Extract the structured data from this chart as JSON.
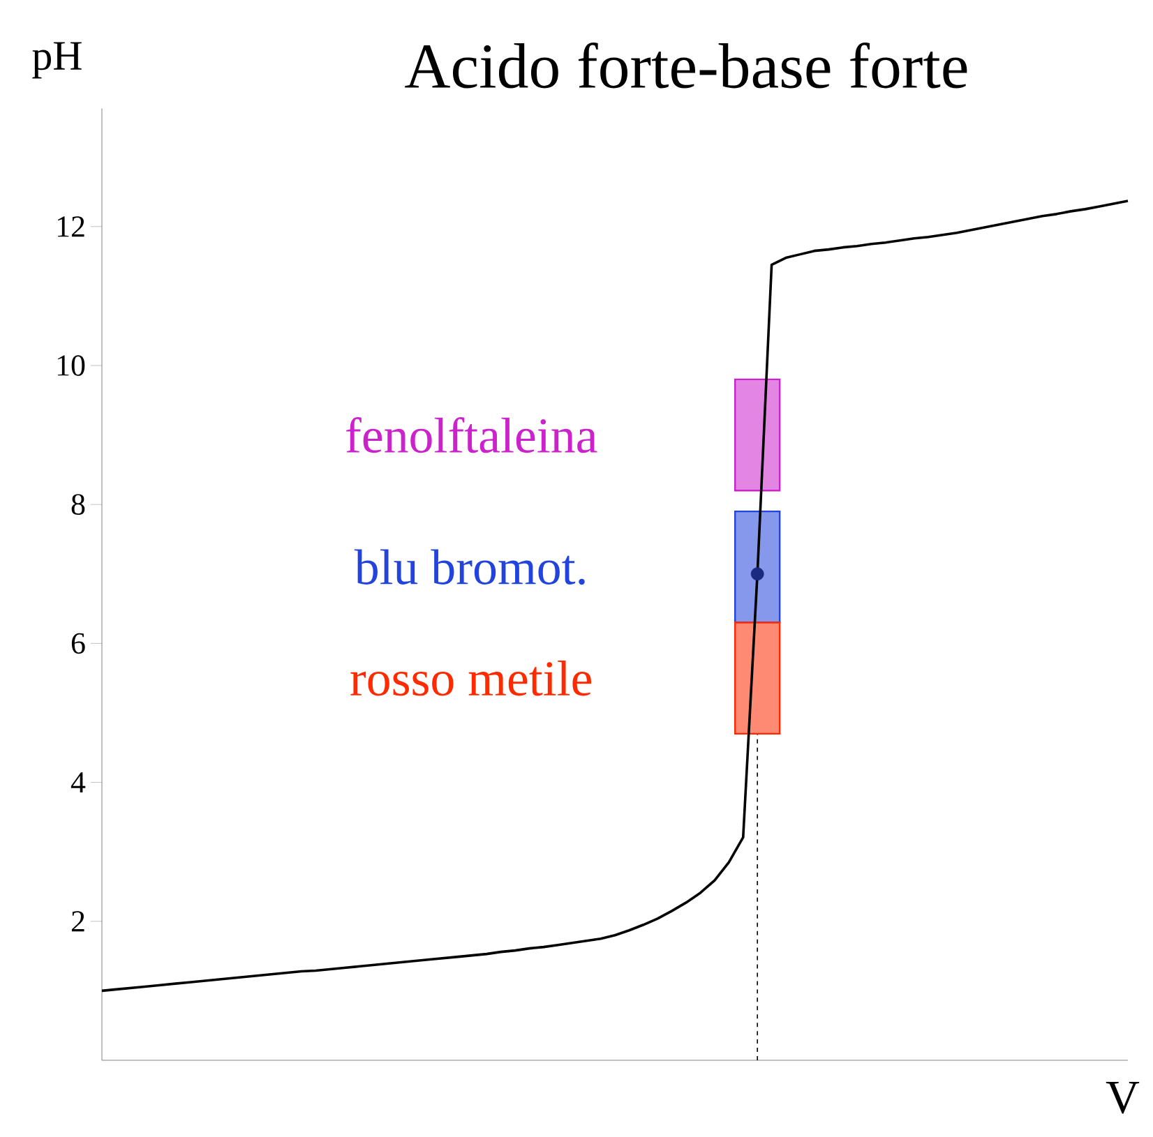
{
  "chart_data": {
    "type": "line",
    "title": "Acido forte-base forte",
    "xlabel": "V",
    "ylabel": "pH",
    "categories": [
      null,
      null,
      null,
      null,
      null,
      null,
      null,
      null,
      null,
      null,
      null,
      null,
      null,
      null,
      null,
      null,
      null,
      null,
      null,
      null,
      null,
      null,
      null,
      null,
      null,
      null,
      null,
      null,
      null,
      null,
      null,
      null,
      null,
      null,
      null,
      null,
      null,
      null,
      null,
      null,
      null,
      null,
      null,
      null,
      null,
      null,
      null,
      null,
      null,
      null,
      null,
      null,
      null,
      null,
      null,
      null,
      null,
      null,
      null,
      null,
      null,
      null,
      null,
      null,
      null,
      null,
      null,
      null,
      null,
      null,
      null,
      null,
      null
    ],
    "series": [
      {
        "color": "#000000",
        "values": [
          1.0,
          1.02,
          1.04,
          1.06,
          1.08,
          1.1,
          1.12,
          1.14,
          1.16,
          1.18,
          1.2,
          1.22,
          1.24,
          1.26,
          1.28,
          1.29,
          1.31,
          1.33,
          1.35,
          1.37,
          1.39,
          1.41,
          1.43,
          1.45,
          1.47,
          1.49,
          1.51,
          1.53,
          1.56,
          1.58,
          1.61,
          1.63,
          1.66,
          1.69,
          1.72,
          1.75,
          1.8,
          1.87,
          1.95,
          2.04,
          2.15,
          2.27,
          2.41,
          2.59,
          2.85,
          3.21,
          7.0,
          11.45,
          11.55,
          11.6,
          11.65,
          11.67,
          11.7,
          11.72,
          11.75,
          11.77,
          11.8,
          11.83,
          11.85,
          11.88,
          11.91,
          11.95,
          11.99,
          12.03,
          12.07,
          12.11,
          12.15,
          12.18,
          12.22,
          12.25,
          12.29,
          12.33,
          12.37
        ]
      },
      {
        "type": "scatter",
        "marker": "circle",
        "color": "#1a2a80",
        "values": [
          null,
          null,
          null,
          null,
          null,
          null,
          null,
          null,
          null,
          null,
          null,
          null,
          null,
          null,
          null,
          null,
          null,
          null,
          null,
          null,
          null,
          null,
          null,
          null,
          null,
          null,
          null,
          null,
          null,
          null,
          null,
          null,
          null,
          null,
          null,
          null,
          null,
          null,
          null,
          null,
          null,
          null,
          null,
          null,
          null,
          null,
          7.0,
          null,
          null,
          null,
          null,
          null,
          null,
          null,
          null,
          null,
          null,
          null,
          null,
          null,
          null,
          null,
          null,
          null,
          null,
          null,
          null,
          null,
          null,
          null,
          null,
          null,
          null
        ]
      }
    ],
    "ylim": [
      0,
      13.7
    ],
    "yticks": [
      2,
      4,
      6,
      8,
      10,
      12
    ],
    "tick_labels": "y",
    "line_style": "solid",
    "bands": [
      {
        "axis": "y",
        "from": 8.2,
        "to": 9.8,
        "label": "fenolftaleina",
        "color": "#cc22cc"
      },
      {
        "axis": "y",
        "from": 6.3,
        "to": 7.9,
        "label": "blu bromot.",
        "color": "#2244dd"
      },
      {
        "axis": "y",
        "from": 4.7,
        "to": 6.3,
        "label": "rosso metile",
        "color": "#ff2a00"
      }
    ]
  }
}
